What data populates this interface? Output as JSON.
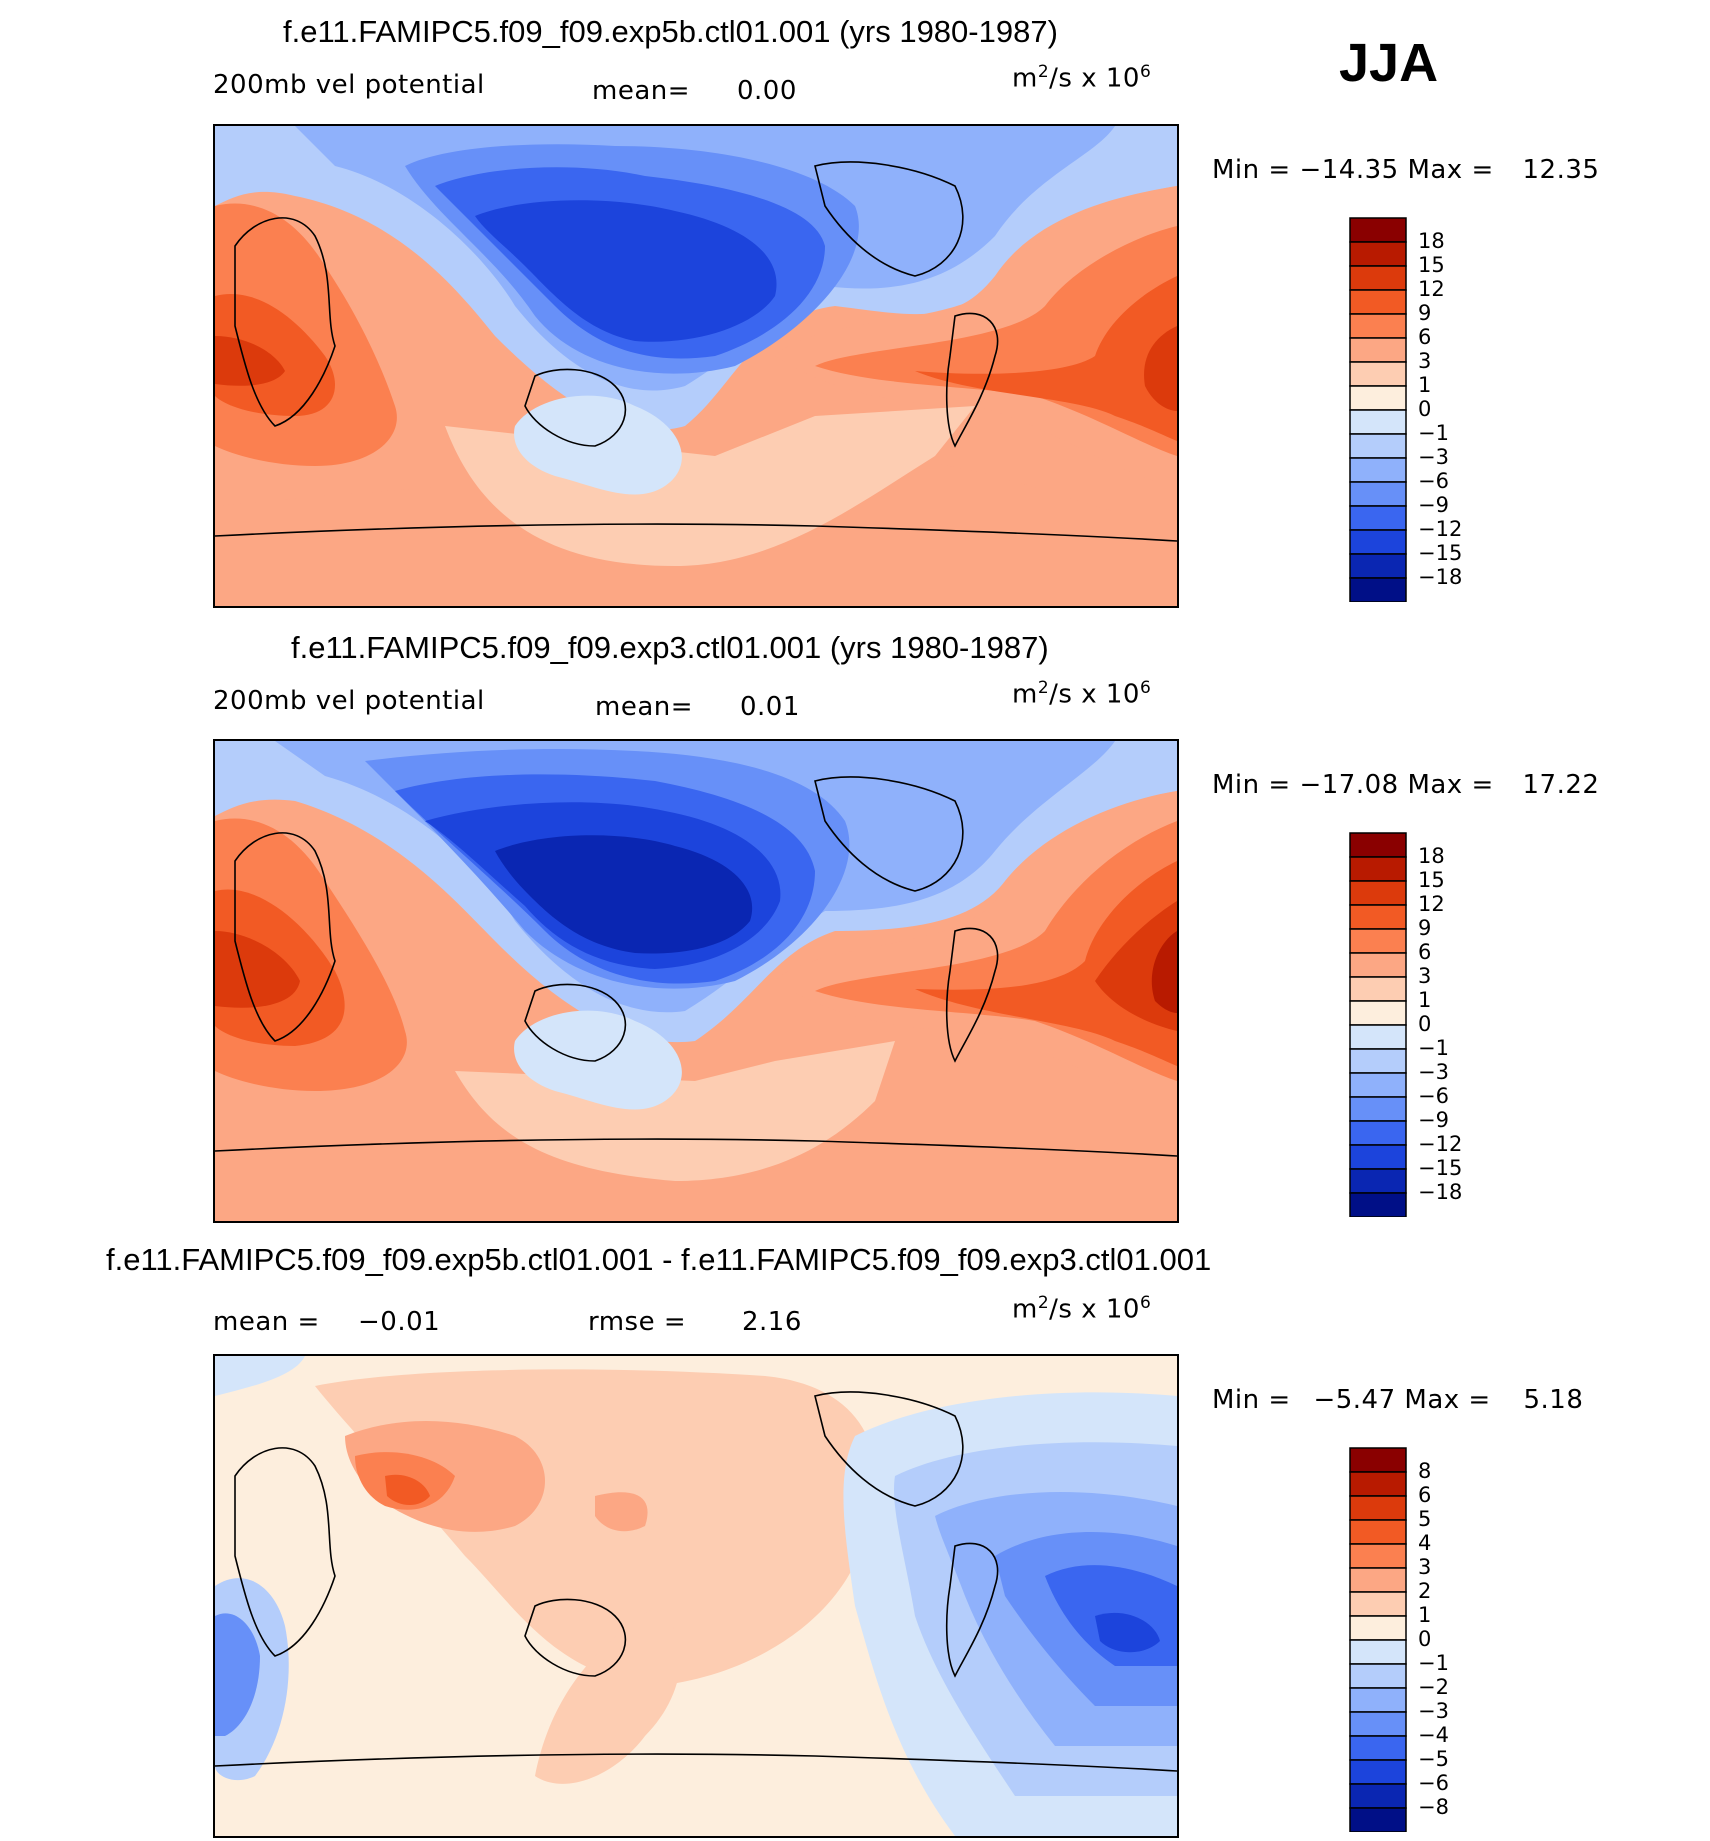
{
  "season": "JJA",
  "chart_data": [
    {
      "type": "heatmap",
      "title": "f.e11.FAMIPC5.f09_f09.exp5b.ctl01.001 (yrs 1980-1987)",
      "variable": "200mb vel potential",
      "stat1_label": "mean=",
      "stat1_value": "0.00",
      "units_base": "m",
      "units_exp": "2",
      "units_mid": "/s x 10",
      "units_pow": "6",
      "min_label": "Min =",
      "min_value": "−14.35",
      "max_label": "Max =",
      "max_value": "12.35",
      "levels": [
        "18",
        "15",
        "12",
        "9",
        "6",
        "3",
        "1",
        "0",
        "−1",
        "−3",
        "−6",
        "−9",
        "−12",
        "−15",
        "−18"
      ],
      "colors": [
        "#8a0000",
        "#b81a00",
        "#dc3a0c",
        "#f25a24",
        "#fb8050",
        "#fca784",
        "#fdcdb2",
        "#fdeedd",
        "#d4e5fa",
        "#b4cdfb",
        "#8fb1fb",
        "#6790f8",
        "#3a66f0",
        "#1c44dc",
        "#0a26b2",
        "#000f87"
      ]
    },
    {
      "type": "heatmap",
      "title": "f.e11.FAMIPC5.f09_f09.exp3.ctl01.001 (yrs 1980-1987)",
      "variable": "200mb vel potential",
      "stat1_label": "mean=",
      "stat1_value": "0.01",
      "units_base": "m",
      "units_exp": "2",
      "units_mid": "/s x 10",
      "units_pow": "6",
      "min_label": "Min =",
      "min_value": "−17.08",
      "max_label": "Max =",
      "max_value": "17.22",
      "levels": [
        "18",
        "15",
        "12",
        "9",
        "6",
        "3",
        "1",
        "0",
        "−1",
        "−3",
        "−6",
        "−9",
        "−12",
        "−15",
        "−18"
      ],
      "colors": [
        "#8a0000",
        "#b81a00",
        "#dc3a0c",
        "#f25a24",
        "#fb8050",
        "#fca784",
        "#fdcdb2",
        "#fdeedd",
        "#d4e5fa",
        "#b4cdfb",
        "#8fb1fb",
        "#6790f8",
        "#3a66f0",
        "#1c44dc",
        "#0a26b2",
        "#000f87"
      ]
    },
    {
      "type": "heatmap",
      "title": "f.e11.FAMIPC5.f09_f09.exp5b.ctl01.001 - f.e11.FAMIPC5.f09_f09.exp3.ctl01.001",
      "stat0_label": "mean =",
      "stat0_value": "−0.01",
      "stat1_label": "rmse =",
      "stat1_value": "2.16",
      "units_base": "m",
      "units_exp": "2",
      "units_mid": "/s x 10",
      "units_pow": "6",
      "min_label": "Min =",
      "min_value": "−5.47",
      "max_label": "Max =",
      "max_value": "5.18",
      "levels": [
        "8",
        "6",
        "5",
        "4",
        "3",
        "2",
        "1",
        "0",
        "−1",
        "−2",
        "−3",
        "−4",
        "−5",
        "−6",
        "−8"
      ],
      "colors": [
        "#8a0000",
        "#b81a00",
        "#dc3a0c",
        "#f25a24",
        "#fb8050",
        "#fca784",
        "#fdcdb2",
        "#fdeedd",
        "#d4e5fa",
        "#b4cdfb",
        "#8fb1fb",
        "#6790f8",
        "#3a66f0",
        "#1c44dc",
        "#0a26b2",
        "#000f87"
      ]
    }
  ]
}
